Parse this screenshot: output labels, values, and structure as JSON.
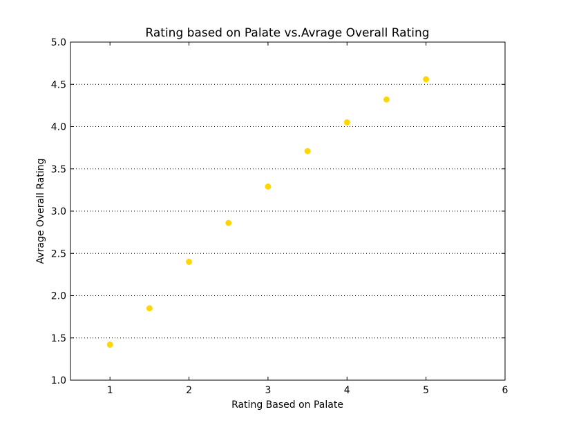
{
  "chart_data": {
    "type": "scatter",
    "title": "Rating based on Palate vs.Avrage  Overall Rating",
    "xlabel": "Rating Based on Palate",
    "ylabel": "Avrage Overall Rating",
    "xlim": [
      0.5,
      6
    ],
    "ylim": [
      1.0,
      5.0
    ],
    "xticks": [
      1,
      2,
      3,
      4,
      5,
      6
    ],
    "xtick_labels": [
      "1",
      "2",
      "3",
      "4",
      "5",
      "6"
    ],
    "yticks": [
      1.0,
      1.5,
      2.0,
      2.5,
      3.0,
      3.5,
      4.0,
      4.5,
      5.0
    ],
    "ytick_labels": [
      "1.0",
      "1.5",
      "2.0",
      "2.5",
      "3.0",
      "3.5",
      "4.0",
      "4.5",
      "5.0"
    ],
    "grid": "horizontal dotted",
    "legend": "none",
    "series": [
      {
        "color": "#ffd700",
        "points": [
          {
            "x": 1.0,
            "y": 1.42
          },
          {
            "x": 1.5,
            "y": 1.85
          },
          {
            "x": 2.0,
            "y": 2.4
          },
          {
            "x": 2.5,
            "y": 2.86
          },
          {
            "x": 3.0,
            "y": 3.29
          },
          {
            "x": 3.5,
            "y": 3.71
          },
          {
            "x": 4.0,
            "y": 4.05
          },
          {
            "x": 4.5,
            "y": 4.32
          },
          {
            "x": 5.0,
            "y": 4.56
          }
        ]
      }
    ]
  }
}
